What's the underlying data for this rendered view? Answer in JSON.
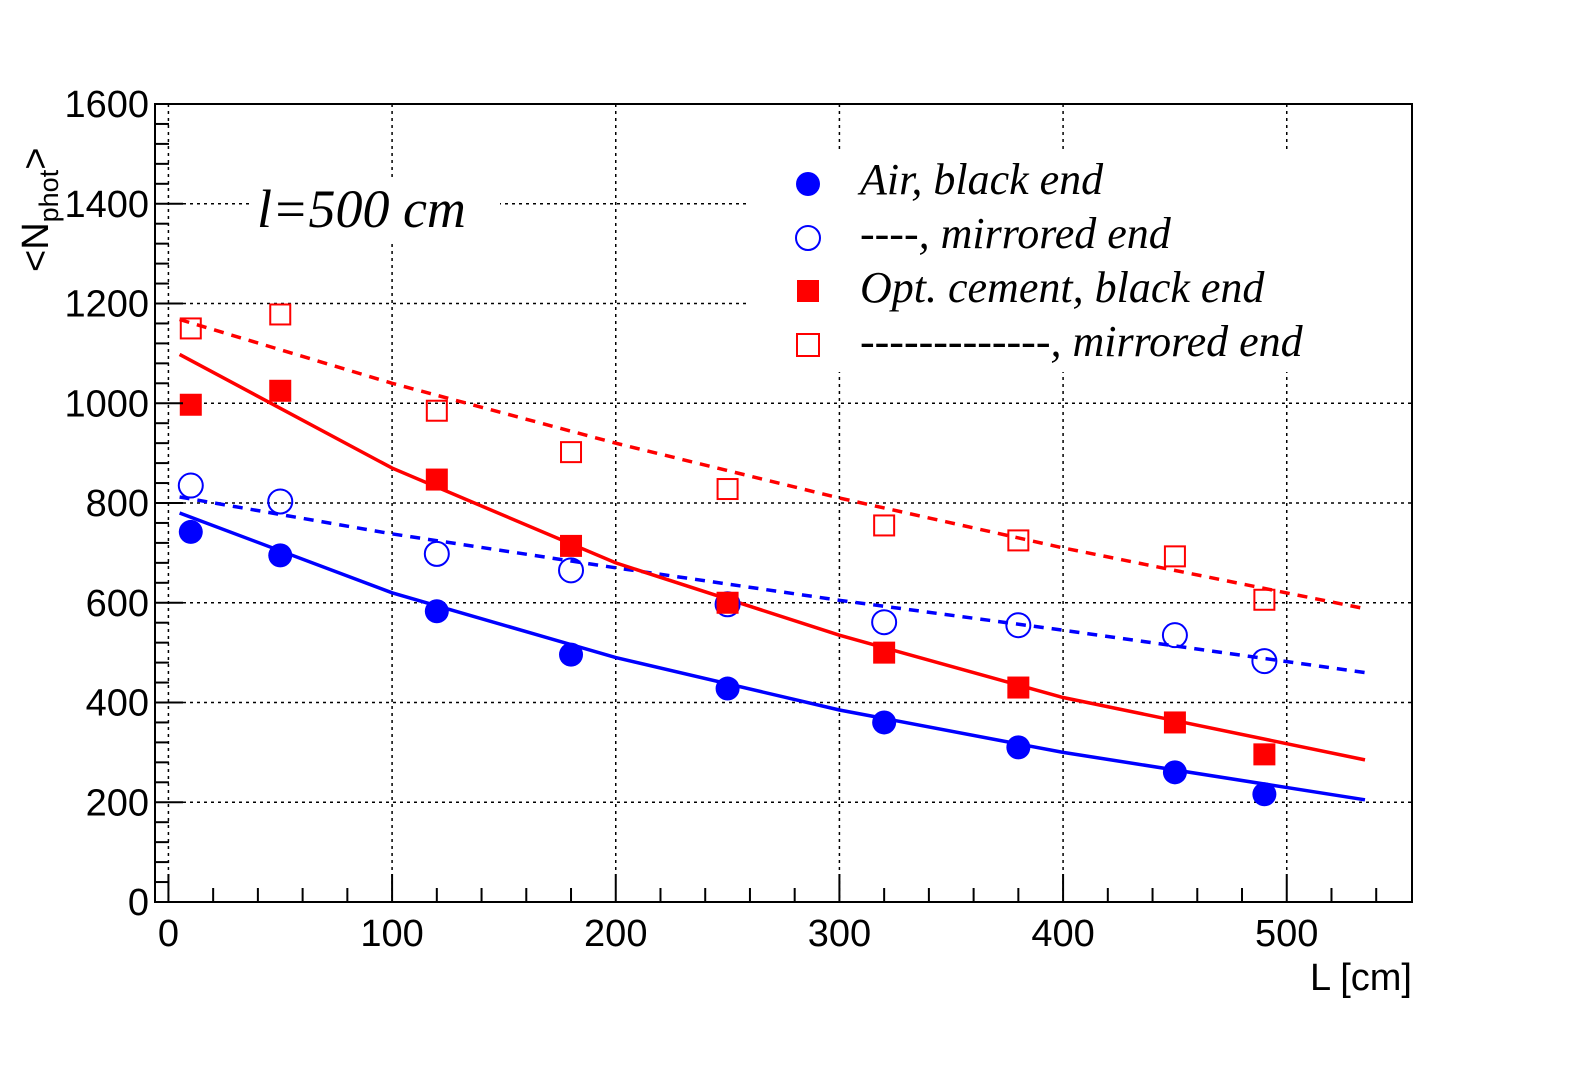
{
  "chart_data": {
    "type": "scatter",
    "title": "",
    "xlabel": "L [cm]",
    "ylabel_main": "<N",
    "ylabel_sub": "phot",
    "ylabel_end": ">",
    "xlim": [
      -6,
      556
    ],
    "ylim": [
      0,
      1600
    ],
    "xticks": [
      0,
      100,
      200,
      300,
      400,
      500
    ],
    "yticks": [
      0,
      200,
      400,
      600,
      800,
      1000,
      1200,
      1400,
      1600
    ],
    "grid": true,
    "annotation": "l=500 cm",
    "legend_position": "top-right",
    "series": [
      {
        "name": "Air, black end",
        "marker": "filled-circle",
        "color": "#0000ff",
        "x": [
          10,
          50,
          120,
          180,
          250,
          320,
          380,
          450,
          490
        ],
        "y": [
          742,
          695,
          583,
          496,
          428,
          360,
          310,
          260,
          216
        ],
        "fit_style": "solid",
        "fit_x": [
          5,
          100,
          200,
          300,
          400,
          535
        ],
        "fit_y": [
          780,
          620,
          490,
          385,
          300,
          205
        ]
      },
      {
        "name": "----, mirrored end",
        "marker": "open-circle",
        "color": "#0000ff",
        "x": [
          10,
          50,
          120,
          180,
          250,
          320,
          380,
          450,
          490
        ],
        "y": [
          835,
          803,
          698,
          665,
          597,
          561,
          555,
          535,
          483
        ],
        "fit_style": "dashed",
        "fit_x": [
          5,
          100,
          200,
          300,
          400,
          535
        ],
        "fit_y": [
          812,
          738,
          670,
          605,
          545,
          460
        ]
      },
      {
        "name": "Opt. cement, black end",
        "marker": "filled-square",
        "color": "#ff0000",
        "x": [
          10,
          50,
          120,
          180,
          250,
          320,
          380,
          450,
          490
        ],
        "y": [
          997,
          1025,
          847,
          714,
          600,
          500,
          430,
          360,
          296
        ],
        "fit_style": "solid",
        "fit_x": [
          5,
          100,
          200,
          300,
          400,
          535
        ],
        "fit_y": [
          1098,
          870,
          680,
          535,
          410,
          285
        ]
      },
      {
        "name": "-------------, mirrored end",
        "marker": "open-square",
        "color": "#ff0000",
        "x": [
          10,
          50,
          120,
          180,
          250,
          320,
          380,
          450,
          490
        ],
        "y": [
          1150,
          1178,
          985,
          902,
          828,
          755,
          725,
          693,
          606
        ],
        "fit_style": "dashed",
        "fit_x": [
          5,
          100,
          200,
          300,
          400,
          535
        ],
        "fit_y": [
          1168,
          1040,
          920,
          810,
          710,
          588
        ]
      }
    ]
  }
}
